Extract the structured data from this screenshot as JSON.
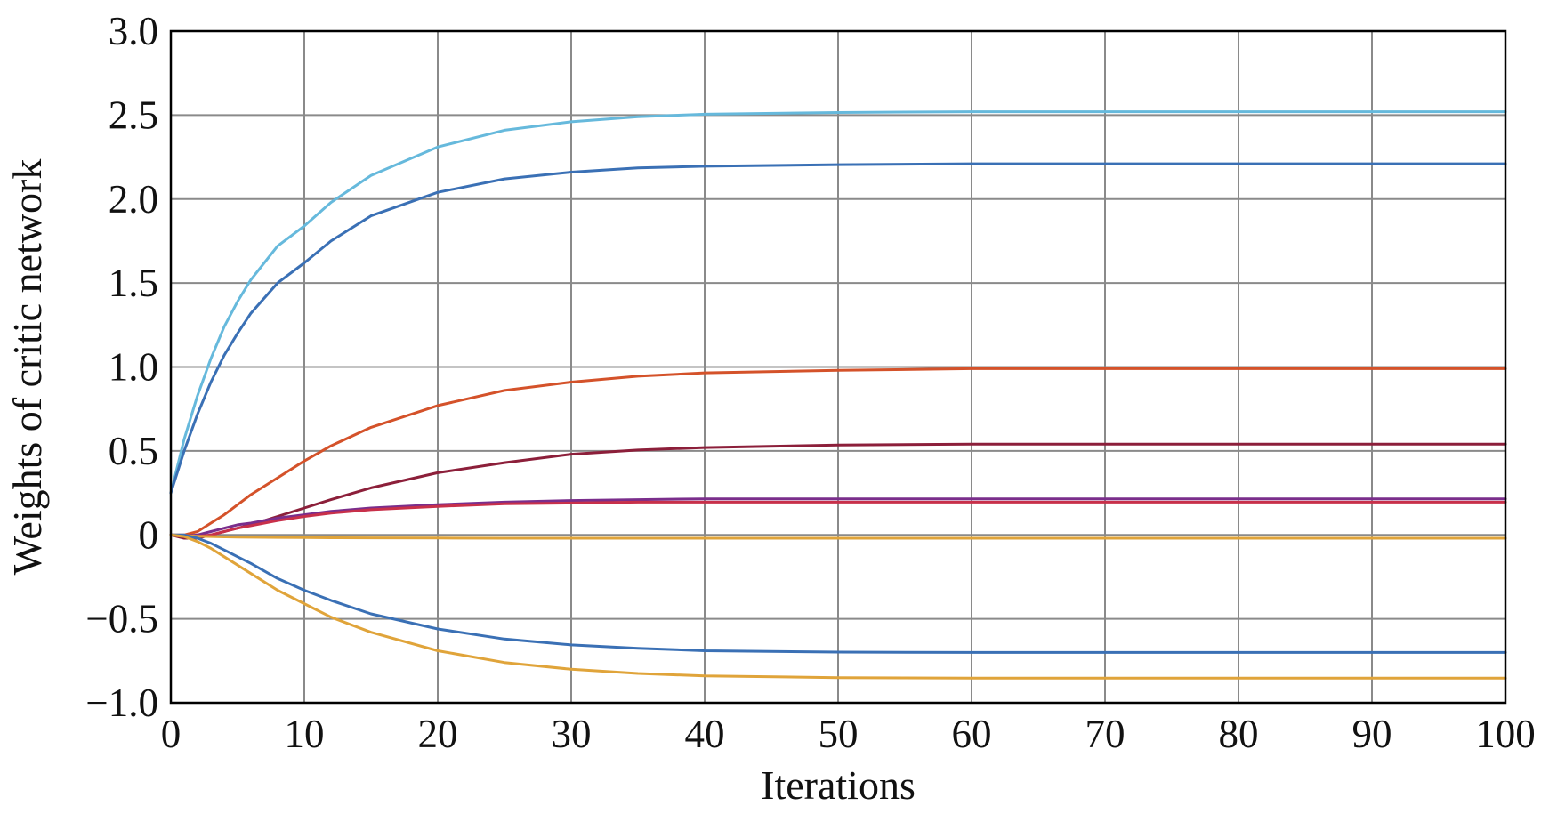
{
  "chart_data": {
    "type": "line",
    "title": "",
    "xlabel": "Iterations",
    "ylabel": "Weights of critic network",
    "xlim": [
      0,
      100
    ],
    "ylim": [
      -1.0,
      3.0
    ],
    "grid": true,
    "legend": "none",
    "x_ticks": [
      0,
      10,
      20,
      30,
      40,
      50,
      60,
      70,
      80,
      90,
      100
    ],
    "x_tick_labels": [
      "0",
      "10",
      "20",
      "30",
      "40",
      "50",
      "60",
      "70",
      "80",
      "90",
      "100"
    ],
    "y_ticks": [
      -1.0,
      -0.5,
      0,
      0.5,
      1.0,
      1.5,
      2.0,
      2.5,
      3.0
    ],
    "y_tick_labels": [
      "−1.0",
      "−0.5",
      "0",
      "0.5",
      "1.0",
      "1.5",
      "2.0",
      "2.5",
      "3.0"
    ],
    "x": [
      0,
      1,
      2,
      3,
      4,
      5,
      6,
      8,
      10,
      12,
      15,
      20,
      25,
      30,
      35,
      40,
      50,
      60,
      70,
      80,
      90,
      100
    ],
    "series": [
      {
        "color": "#66b9dc",
        "values": [
          0.25,
          0.57,
          0.83,
          1.05,
          1.24,
          1.39,
          1.52,
          1.72,
          1.84,
          1.98,
          2.14,
          2.31,
          2.41,
          2.46,
          2.49,
          2.505,
          2.515,
          2.52,
          2.52,
          2.52,
          2.52,
          2.52
        ]
      },
      {
        "color": "#3a70b5",
        "values": [
          0.25,
          0.5,
          0.72,
          0.91,
          1.07,
          1.2,
          1.32,
          1.5,
          1.62,
          1.75,
          1.9,
          2.04,
          2.12,
          2.16,
          2.185,
          2.195,
          2.205,
          2.21,
          2.21,
          2.21,
          2.21,
          2.21
        ]
      },
      {
        "color": "#d4522a",
        "values": [
          0.0,
          0.0,
          0.02,
          0.07,
          0.12,
          0.18,
          0.24,
          0.34,
          0.44,
          0.53,
          0.64,
          0.77,
          0.86,
          0.91,
          0.945,
          0.965,
          0.98,
          0.99,
          0.99,
          0.99,
          0.99,
          0.99
        ]
      },
      {
        "color": "#8c1f3a",
        "values": [
          0.0,
          -0.02,
          -0.02,
          0.0,
          0.02,
          0.04,
          0.06,
          0.11,
          0.16,
          0.21,
          0.28,
          0.37,
          0.43,
          0.48,
          0.505,
          0.52,
          0.535,
          0.54,
          0.54,
          0.54,
          0.54,
          0.54
        ]
      },
      {
        "color": "#7a2e8c",
        "values": [
          0.0,
          -0.01,
          0.0,
          0.02,
          0.04,
          0.06,
          0.07,
          0.1,
          0.12,
          0.14,
          0.16,
          0.18,
          0.195,
          0.205,
          0.21,
          0.215,
          0.215,
          0.215,
          0.215,
          0.215,
          0.215,
          0.215
        ]
      },
      {
        "color": "#c8304a",
        "values": [
          0.0,
          -0.01,
          -0.01,
          0.0,
          0.02,
          0.04,
          0.055,
          0.085,
          0.11,
          0.13,
          0.15,
          0.17,
          0.185,
          0.19,
          0.195,
          0.195,
          0.195,
          0.195,
          0.195,
          0.195,
          0.195,
          0.195
        ]
      },
      {
        "color": "#e0a43a",
        "values": [
          0.0,
          -0.005,
          -0.008,
          -0.01,
          -0.012,
          -0.013,
          -0.014,
          -0.015,
          -0.016,
          -0.017,
          -0.018,
          -0.019,
          -0.02,
          -0.02,
          -0.02,
          -0.02,
          -0.02,
          -0.02,
          -0.02,
          -0.02,
          -0.02,
          -0.02
        ]
      },
      {
        "color": "#3a70b5",
        "values": [
          0.0,
          0.0,
          -0.02,
          -0.05,
          -0.09,
          -0.13,
          -0.17,
          -0.26,
          -0.33,
          -0.39,
          -0.47,
          -0.56,
          -0.62,
          -0.655,
          -0.675,
          -0.69,
          -0.698,
          -0.7,
          -0.7,
          -0.7,
          -0.7,
          -0.7
        ]
      },
      {
        "color": "#e0a43a",
        "values": [
          0.0,
          -0.01,
          -0.04,
          -0.08,
          -0.13,
          -0.18,
          -0.23,
          -0.33,
          -0.41,
          -0.49,
          -0.58,
          -0.69,
          -0.76,
          -0.8,
          -0.825,
          -0.84,
          -0.85,
          -0.853,
          -0.853,
          -0.853,
          -0.853,
          -0.853
        ]
      }
    ]
  }
}
